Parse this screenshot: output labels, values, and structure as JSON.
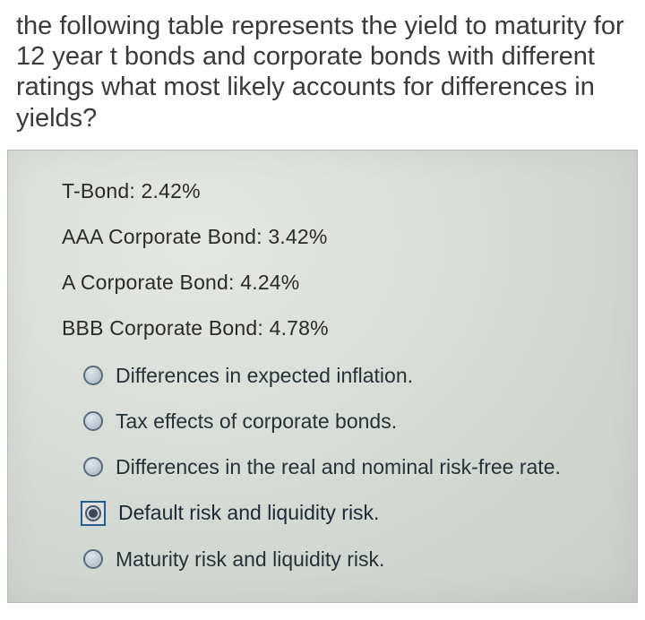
{
  "question": "the following table represents the yield to maturity for 12 year t bonds and corporate bonds with different ratings what most likely accounts for differences in yields?",
  "yields": [
    {
      "label": "T-Bond:",
      "value": "2.42%"
    },
    {
      "label": "AAA Corporate Bond:",
      "value": "3.42%"
    },
    {
      "label": "A Corporate Bond:",
      "value": "4.24%"
    },
    {
      "label": "BBB Corporate Bond:",
      "value": "4.78%"
    }
  ],
  "options": [
    {
      "text": "Differences in expected inflation.",
      "selected": false
    },
    {
      "text": "Tax effects of corporate bonds.",
      "selected": false
    },
    {
      "text": "Differences in the real and nominal risk-free rate.",
      "selected": false
    },
    {
      "text": "Default risk and liquidity risk.",
      "selected": true
    },
    {
      "text": "Maturity risk and liquidity risk.",
      "selected": false
    }
  ],
  "colors": {
    "text_primary": "#3a3a3a",
    "panel_bg_light": "#e5e8e2",
    "panel_bg_dark": "#c9cdc8",
    "radio_border": "#5a6b7c",
    "selected_box_border": "#2b5c8f"
  }
}
